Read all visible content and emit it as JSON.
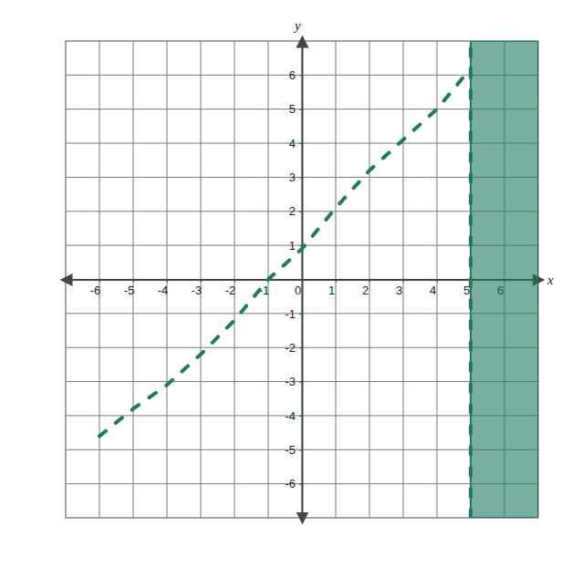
{
  "chart_data": {
    "type": "line",
    "x_label": "x",
    "y_label": "y",
    "xlim": [
      -7,
      7
    ],
    "ylim": [
      -7,
      7
    ],
    "xticks": [
      -6,
      -5,
      -4,
      -3,
      -2,
      -1,
      0,
      1,
      2,
      3,
      4,
      5,
      6
    ],
    "yticks": [
      -6,
      -5,
      -4,
      -3,
      -2,
      -1,
      1,
      2,
      3,
      4,
      5,
      6
    ],
    "grid": true,
    "series": [
      {
        "type": "area",
        "color": "#1f7a63",
        "x": [
          5,
          7
        ],
        "values": [
          7,
          7
        ]
      },
      {
        "type": "line",
        "line_style": "dashed",
        "color": "#1f7a63",
        "x": [
          5,
          5
        ],
        "values": [
          -7,
          7
        ]
      },
      {
        "type": "line",
        "line_style": "dashed",
        "color": "#1f7a63",
        "x": [
          -6,
          -5,
          -4,
          -3,
          -2,
          -1,
          0,
          1,
          2,
          3,
          4,
          5
        ],
        "values": [
          -4.6,
          -3.8,
          -3.1,
          -2.2,
          -1.2,
          0,
          0.9,
          2.1,
          3.2,
          4.1,
          5,
          6.2
        ]
      }
    ]
  }
}
